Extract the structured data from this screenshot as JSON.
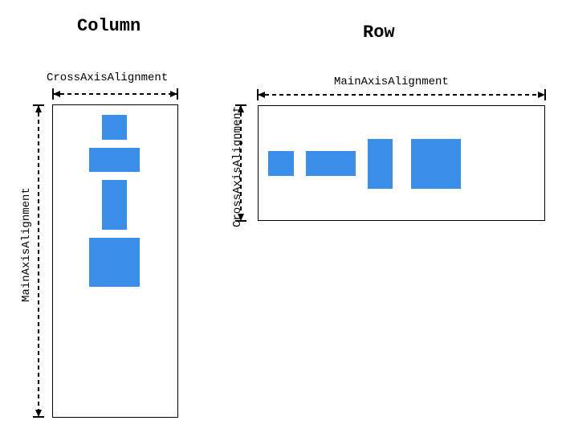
{
  "column": {
    "title": "Column",
    "cross_axis_label": "CrossAxisAlignment",
    "main_axis_label": "MainAxisAlignment"
  },
  "row": {
    "title": "Row",
    "main_axis_label": "MainAxisAlignment",
    "cross_axis_label": "CrossAxisAlignment"
  },
  "colors": {
    "child_fill": "#3b8eea",
    "border": "#000000"
  }
}
